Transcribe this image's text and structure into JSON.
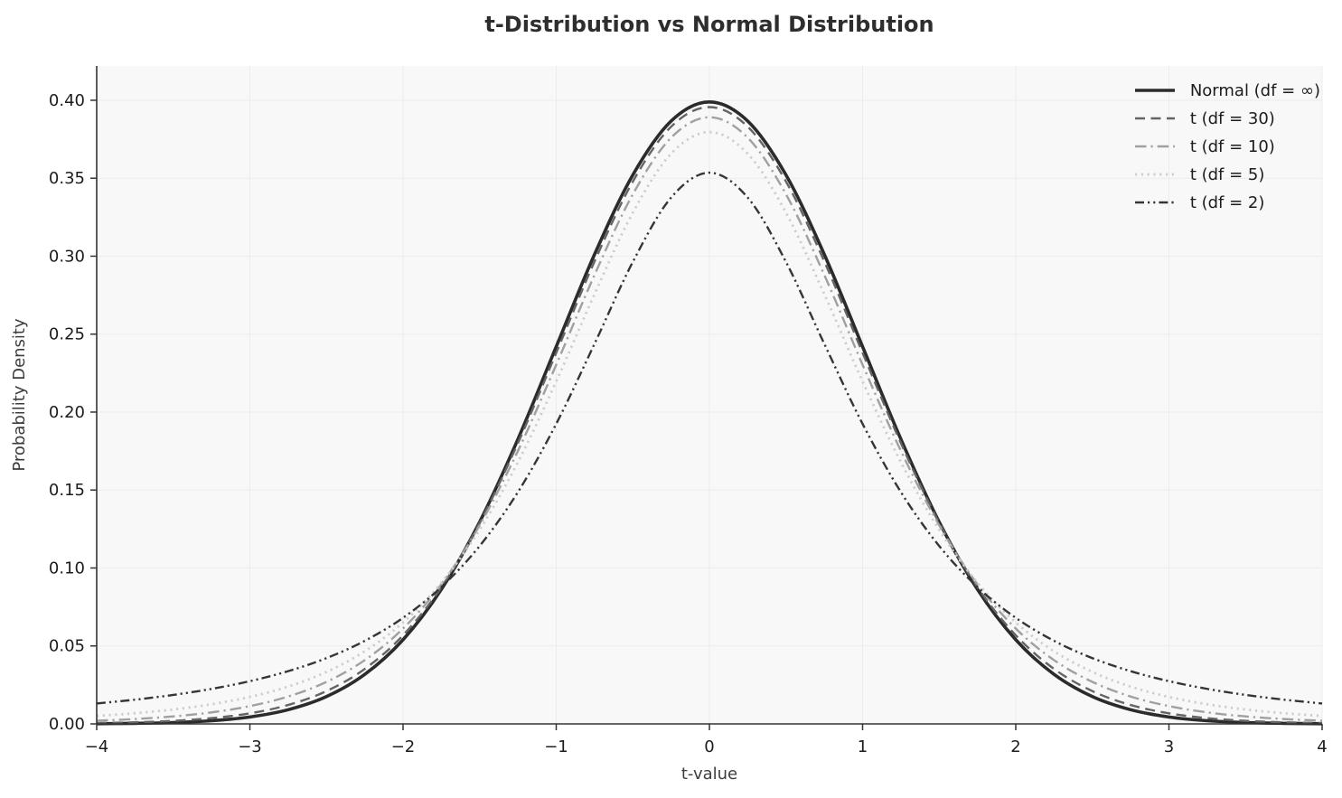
{
  "title": "t-Distribution vs Normal Distribution",
  "chart_data": {
    "type": "line",
    "title": "t-Distribution vs Normal Distribution",
    "xlabel": "t-value",
    "ylabel": "Probability Density",
    "xlim": [
      -4,
      4
    ],
    "ylim": [
      0,
      0.422
    ],
    "grid": true,
    "legend_position": "upper right",
    "xtick_values": [
      -4,
      -3,
      -2,
      -1,
      0,
      1,
      2,
      3,
      4
    ],
    "xtick_labels": [
      "−4",
      "−3",
      "−2",
      "−1",
      "0",
      "1",
      "2",
      "3",
      "4"
    ],
    "ytick_values": [
      0.0,
      0.05,
      0.1,
      0.15,
      0.2,
      0.25,
      0.3,
      0.35,
      0.4
    ],
    "ytick_labels": [
      "0.00",
      "0.05",
      "0.10",
      "0.15",
      "0.20",
      "0.25",
      "0.30",
      "0.35",
      "0.40"
    ],
    "x": [
      -4,
      -3.75,
      -3.5,
      -3.25,
      -3,
      -2.75,
      -2.5,
      -2.25,
      -2,
      -1.75,
      -1.5,
      -1.25,
      -1,
      -0.75,
      -0.5,
      -0.25,
      0,
      0.25,
      0.5,
      0.75,
      1,
      1.25,
      1.5,
      1.75,
      2,
      2.25,
      2.5,
      2.75,
      3,
      3.25,
      3.5,
      3.75,
      4
    ],
    "series": [
      {
        "id": "normal-df-inf",
        "name": "Normal (df = ∞)",
        "style": "solid",
        "color": "#2b2b2b",
        "width": 3.6,
        "values": [
          0.00013,
          0.00035,
          0.00087,
          0.00203,
          0.00443,
          0.00909,
          0.01753,
          0.03174,
          0.05399,
          0.08628,
          0.12952,
          0.18265,
          0.24197,
          0.30114,
          0.35207,
          0.38667,
          0.39894,
          0.38667,
          0.35207,
          0.30114,
          0.24197,
          0.18265,
          0.12952,
          0.08628,
          0.05399,
          0.03174,
          0.01753,
          0.00909,
          0.00443,
          0.00203,
          0.00087,
          0.00035,
          0.00013
        ]
      },
      {
        "id": "t-df-30",
        "name": "t (df = 30)",
        "style": "dashed",
        "color": "#646464",
        "width": 2.4,
        "values": [
          0.00053,
          0.00102,
          0.00196,
          0.00369,
          0.00678,
          0.01213,
          0.02104,
          0.03525,
          0.05686,
          0.08769,
          0.12897,
          0.18009,
          0.238,
          0.29664,
          0.34787,
          0.38306,
          0.39562,
          0.38306,
          0.34787,
          0.29664,
          0.238,
          0.18009,
          0.12897,
          0.08769,
          0.05686,
          0.03525,
          0.02104,
          0.01213,
          0.00678,
          0.00369,
          0.00196,
          0.00102,
          0.00053
        ]
      },
      {
        "id": "t-df-10",
        "name": "t (df = 10)",
        "style": "dashdot",
        "color": "#a0a0a0",
        "width": 2.4,
        "values": [
          0.00203,
          0.00311,
          0.00479,
          0.00739,
          0.01142,
          0.01756,
          0.02695,
          0.0409,
          0.06116,
          0.0895,
          0.12745,
          0.17513,
          0.23036,
          0.28797,
          0.3397,
          0.376,
          0.38911,
          0.376,
          0.3397,
          0.28797,
          0.23036,
          0.17513,
          0.12745,
          0.0895,
          0.06116,
          0.0409,
          0.02695,
          0.01756,
          0.01142,
          0.00739,
          0.00479,
          0.00311,
          0.00203
        ]
      },
      {
        "id": "t-df-5",
        "name": "t (df = 5)",
        "style": "dotted",
        "color": "#cdcdcd",
        "width": 2.8,
        "values": [
          0.00512,
          0.00685,
          0.00924,
          0.01259,
          0.01729,
          0.02393,
          0.03333,
          0.04657,
          0.06509,
          0.09054,
          0.12452,
          0.16788,
          0.21967,
          0.27565,
          0.32791,
          0.36572,
          0.3796,
          0.36572,
          0.32791,
          0.27565,
          0.21967,
          0.16788,
          0.12452,
          0.09054,
          0.06509,
          0.04657,
          0.03333,
          0.02393,
          0.01729,
          0.01259,
          0.00924,
          0.00685,
          0.00512
        ]
      },
      {
        "id": "t-df-2",
        "name": "t (df = 2)",
        "style": "dashdotdot",
        "color": "#353535",
        "width": 2.4,
        "values": [
          0.0131,
          0.01553,
          0.01859,
          0.02246,
          0.02741,
          0.03382,
          0.0422,
          0.05328,
          0.06804,
          0.08779,
          0.11413,
          0.14872,
          0.19245,
          0.24379,
          0.2963,
          0.33759,
          0.35355,
          0.33759,
          0.2963,
          0.24379,
          0.19245,
          0.14872,
          0.11413,
          0.08779,
          0.06804,
          0.05328,
          0.0422,
          0.03382,
          0.02741,
          0.02246,
          0.01859,
          0.01553,
          0.0131
        ]
      }
    ],
    "colors": {
      "figure_bg": "#ffffff",
      "plot_bg": "#f8f8f8",
      "grid": "#ececec",
      "spine": "#333333",
      "tick": "#333333",
      "tick_label": "#1c1c1c",
      "axis_label": "#3d3d3d",
      "title": "#2e2e2e"
    }
  }
}
